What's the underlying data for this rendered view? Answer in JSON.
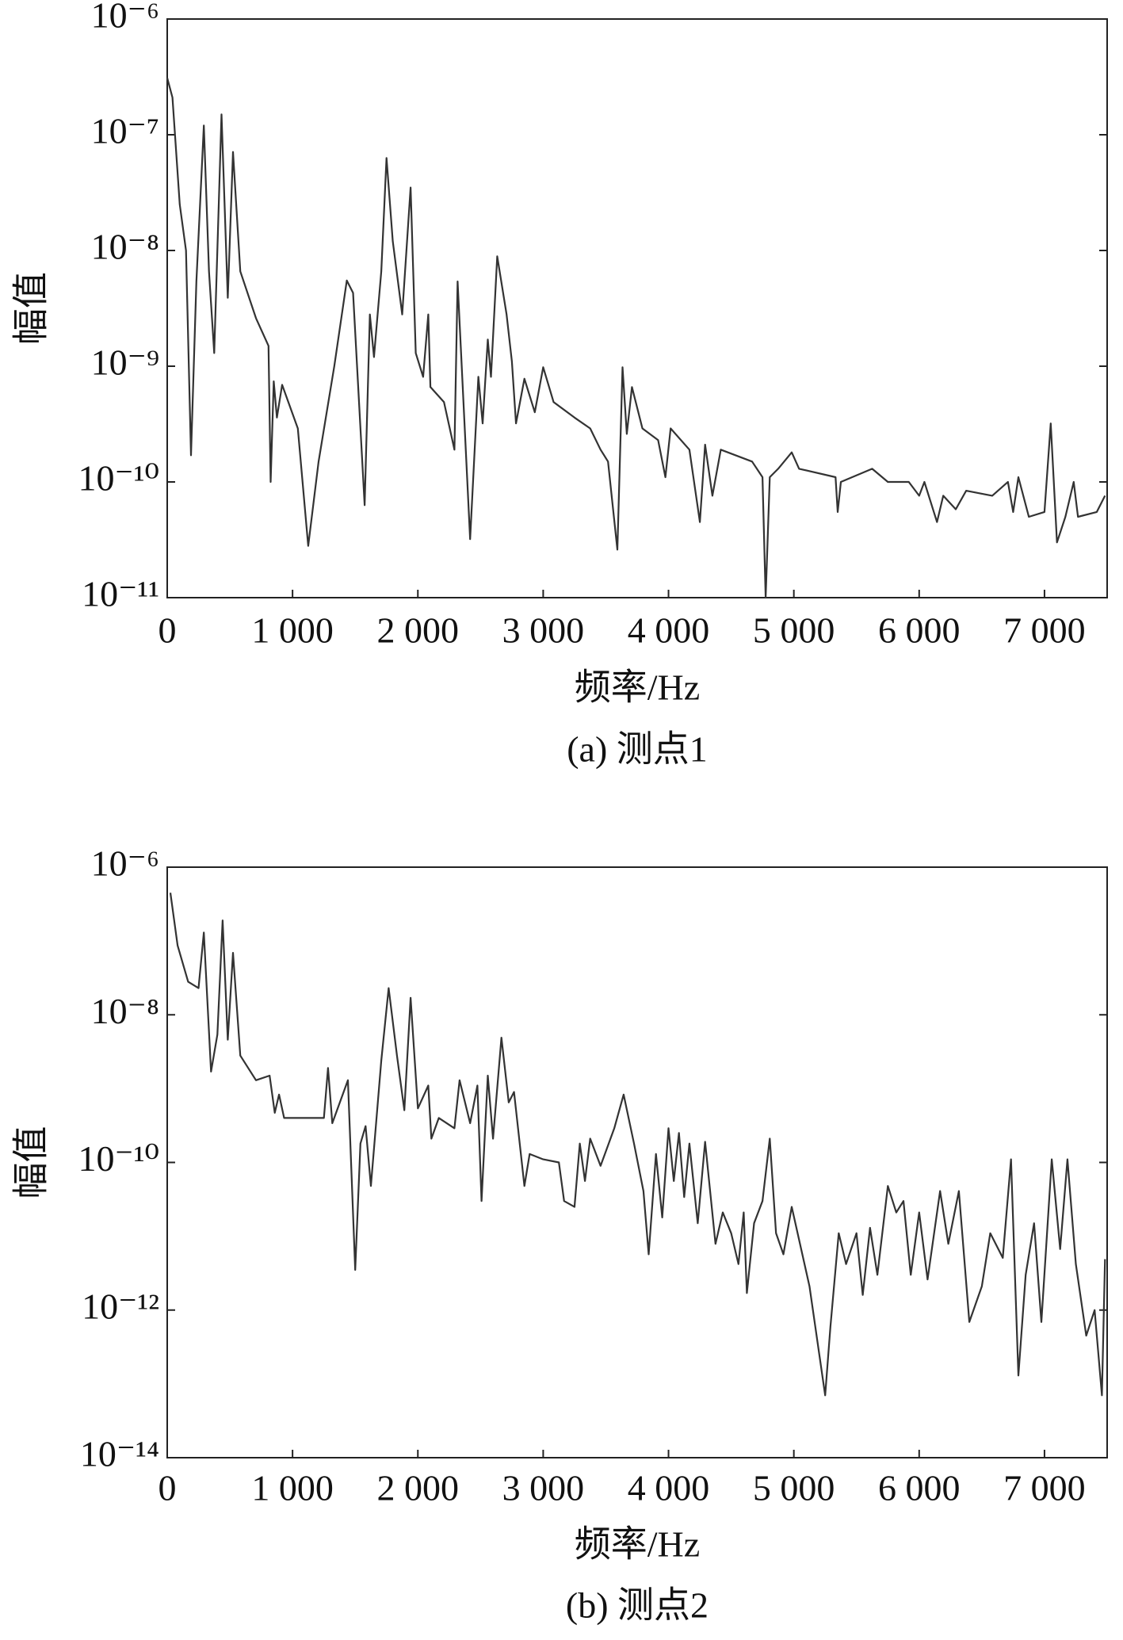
{
  "chart_data": [
    {
      "type": "line",
      "xlabel": "频率/Hz",
      "ylabel": "幅值",
      "caption": "(a) 测点1",
      "xlim": [
        0,
        7500
      ],
      "xticks": [
        0,
        {
          "value": 1000,
          "label": "1 000"
        },
        {
          "value": 2000,
          "label": "2 000"
        },
        {
          "value": 3000,
          "label": "3 000"
        },
        {
          "value": 4000,
          "label": "4 000"
        },
        {
          "value": 5000,
          "label": "5 000"
        },
        {
          "value": 6000,
          "label": "6 000"
        },
        {
          "value": 7000,
          "label": "7 000"
        }
      ],
      "ylim": [
        1e-11,
        1e-06
      ],
      "ylog": true,
      "yticks": [
        {
          "value": 1e-11,
          "label": "10⁻¹¹"
        },
        {
          "value": 1e-10,
          "label": "10⁻¹⁰"
        },
        {
          "value": 1e-09,
          "label": "10⁻⁹"
        },
        {
          "value": 1e-08,
          "label": "10⁻⁸"
        },
        {
          "value": 1e-07,
          "label": "10⁻⁷"
        },
        {
          "value": 1e-06,
          "label": "10⁻⁶"
        }
      ],
      "x": [
        0,
        42,
        100,
        150,
        190,
        233,
        292,
        333,
        375,
        433,
        483,
        525,
        583,
        708,
        808,
        825,
        850,
        875,
        917,
        1042,
        1125,
        1208,
        1333,
        1433,
        1483,
        1575,
        1617,
        1650,
        1708,
        1750,
        1800,
        1875,
        1942,
        1983,
        2042,
        2083,
        2100,
        2208,
        2292,
        2317,
        2417,
        2483,
        2517,
        2558,
        2583,
        2633,
        2708,
        2750,
        2783,
        2850,
        2933,
        3000,
        3083,
        3250,
        3375,
        3458,
        3517,
        3592,
        3633,
        3667,
        3708,
        3792,
        3917,
        3975,
        4017,
        4167,
        4250,
        4292,
        4350,
        4417,
        4667,
        4750,
        4775,
        4808,
        4875,
        4983,
        5042,
        5333,
        5350,
        5375,
        5625,
        5750,
        5917,
        6000,
        6042,
        6142,
        6192,
        6292,
        6375,
        6583,
        6708,
        6750,
        6792,
        6875,
        7000,
        7050,
        7100,
        7167,
        7233,
        7267,
        7417,
        7483
      ],
      "series": [
        {
          "color": "#333333",
          "values": [
            3.1e-07,
            2.1e-07,
            2.5e-08,
            1e-08,
            1.7e-10,
            5.4e-09,
            1.2e-07,
            6.6e-09,
            1.3e-09,
            1.5e-07,
            3.9e-09,
            7.1e-08,
            6.6e-09,
            2.6e-09,
            1.5e-09,
            1e-10,
            7.4e-10,
            3.6e-10,
            6.9e-10,
            2.9e-10,
            2.8e-11,
            1.5e-10,
            1e-09,
            5.5e-09,
            4.3e-09,
            6.3e-11,
            2.8e-09,
            1.2e-09,
            6.6e-09,
            6.3e-08,
            1.2e-08,
            2.8e-09,
            3.5e-08,
            1.3e-09,
            8.1e-10,
            2.8e-09,
            6.6e-10,
            4.9e-10,
            1.9e-10,
            5.4e-09,
            3.2e-11,
            8.1e-10,
            3.2e-10,
            1.7e-09,
            8.1e-10,
            8.9e-09,
            2.8e-09,
            1.1e-09,
            3.2e-10,
            7.8e-10,
            4e-10,
            9.8e-10,
            4.9e-10,
            3.6e-10,
            2.9e-10,
            1.9e-10,
            1.5e-10,
            2.6e-11,
            9.8e-10,
            2.6e-10,
            6.6e-10,
            2.9e-10,
            2.3e-10,
            1.1e-10,
            2.9e-10,
            1.9e-10,
            4.5e-11,
            2.1e-10,
            7.6e-11,
            1.9e-10,
            1.5e-10,
            1.1e-10,
            1e-11,
            1.1e-10,
            1.3e-10,
            1.8e-10,
            1.3e-10,
            1.1e-10,
            5.5e-11,
            1e-10,
            1.3e-10,
            1e-10,
            1e-10,
            7.6e-11,
            1e-10,
            4.5e-11,
            7.6e-11,
            5.8e-11,
            8.4e-11,
            7.6e-11,
            1e-10,
            5.5e-11,
            1.1e-10,
            5e-11,
            5.5e-11,
            3.2e-10,
            3e-11,
            5e-11,
            1e-10,
            5e-11,
            5.5e-11,
            7.6e-11
          ]
        }
      ]
    },
    {
      "type": "line",
      "xlabel": "频率/Hz",
      "ylabel": "幅值",
      "caption": "(b) 测点2",
      "xlim": [
        0,
        7500
      ],
      "xticks": [
        0,
        {
          "value": 1000,
          "label": "1 000"
        },
        {
          "value": 2000,
          "label": "2 000"
        },
        {
          "value": 3000,
          "label": "3 000"
        },
        {
          "value": 4000,
          "label": "4 000"
        },
        {
          "value": 5000,
          "label": "5 000"
        },
        {
          "value": 6000,
          "label": "6 000"
        },
        {
          "value": 7000,
          "label": "7 000"
        }
      ],
      "ylim": [
        1e-14,
        1e-06
      ],
      "ylog": true,
      "yticks": [
        {
          "value": 1e-14,
          "label": "10⁻¹⁴"
        },
        {
          "value": 1e-12,
          "label": "10⁻¹²"
        },
        {
          "value": 1e-10,
          "label": "10⁻¹⁰"
        },
        {
          "value": 1e-08,
          "label": "10⁻⁸"
        },
        {
          "value": 1e-06,
          "label": "10⁻⁶"
        }
      ],
      "x": [
        25,
        83,
        167,
        250,
        292,
        350,
        400,
        442,
        483,
        525,
        583,
        708,
        817,
        858,
        892,
        933,
        1083,
        1250,
        1283,
        1317,
        1442,
        1500,
        1542,
        1583,
        1625,
        1708,
        1767,
        1833,
        1892,
        1942,
        2000,
        2083,
        2108,
        2167,
        2292,
        2333,
        2417,
        2475,
        2508,
        2558,
        2600,
        2667,
        2725,
        2767,
        2850,
        2892,
        3000,
        3125,
        3167,
        3250,
        3292,
        3333,
        3375,
        3458,
        3567,
        3642,
        3725,
        3800,
        3842,
        3900,
        3950,
        4000,
        4042,
        4083,
        4125,
        4167,
        4233,
        4292,
        4375,
        4433,
        4500,
        4558,
        4600,
        4625,
        4683,
        4750,
        4808,
        4858,
        4917,
        4983,
        5125,
        5250,
        5292,
        5358,
        5417,
        5500,
        5550,
        5608,
        5667,
        5750,
        5817,
        5875,
        5933,
        6000,
        6067,
        6167,
        6233,
        6317,
        6400,
        6500,
        6567,
        6667,
        6733,
        6792,
        6850,
        6917,
        6975,
        7058,
        7125,
        7183,
        7250,
        7333,
        7400,
        7458,
        7483
      ],
      "series": [
        {
          "color": "#333333",
          "values": [
            4.5e-07,
            8.7e-08,
            2.8e-08,
            2.3e-08,
            1.3e-07,
            1.7e-09,
            5.4e-09,
            1.9e-07,
            4.6e-09,
            6.9e-08,
            2.8e-09,
            1.3e-09,
            1.5e-09,
            4.7e-10,
            8.3e-10,
            4e-10,
            4e-10,
            4e-10,
            1.9e-09,
            3.4e-10,
            1.3e-09,
            3.5e-12,
            1.8e-10,
            3.1e-10,
            4.8e-11,
            2.4e-09,
            2.3e-08,
            2.8e-09,
            5.1e-10,
            1.7e-08,
            5.4e-10,
            1.1e-09,
            2.1e-10,
            4e-10,
            2.9e-10,
            1.3e-09,
            3.4e-10,
            1.1e-09,
            3e-11,
            1.5e-09,
            2.1e-10,
            4.9e-09,
            6.5e-10,
            9e-10,
            4.8e-11,
            1.3e-10,
            1.1e-10,
            1e-10,
            3e-11,
            2.5e-11,
            1.8e-10,
            5.6e-11,
            2.1e-10,
            9e-11,
            2.9e-10,
            8.3e-10,
            1.8e-10,
            4.1e-11,
            5.7e-12,
            1.3e-10,
            1.8e-11,
            2.9e-10,
            5.6e-11,
            2.5e-10,
            3.4e-11,
            1.8e-10,
            1.5e-11,
            1.9e-10,
            7.9e-12,
            2.1e-11,
            1.1e-11,
            4.2e-12,
            2.1e-11,
            1.7e-12,
            1.5e-11,
            3e-11,
            2.1e-10,
            1.1e-11,
            5.7e-12,
            2.5e-11,
            2.1e-12,
            7e-14,
            5.9e-13,
            1.1e-11,
            4.2e-12,
            1.1e-11,
            1.6e-12,
            1.3e-11,
            3e-12,
            4.8e-11,
            2.1e-11,
            3e-11,
            3e-12,
            2.1e-11,
            2.6e-12,
            4.1e-11,
            7.9e-12,
            4.1e-11,
            6.9e-13,
            2.1e-12,
            1.1e-11,
            5.1e-12,
            1.1e-10,
            1.3e-13,
            3e-12,
            1.5e-11,
            6.9e-13,
            1.1e-10,
            6.7e-12,
            1.1e-10,
            4.2e-12,
            4.5e-13,
            1e-12,
            7e-14,
            4.9e-12
          ]
        }
      ]
    }
  ]
}
